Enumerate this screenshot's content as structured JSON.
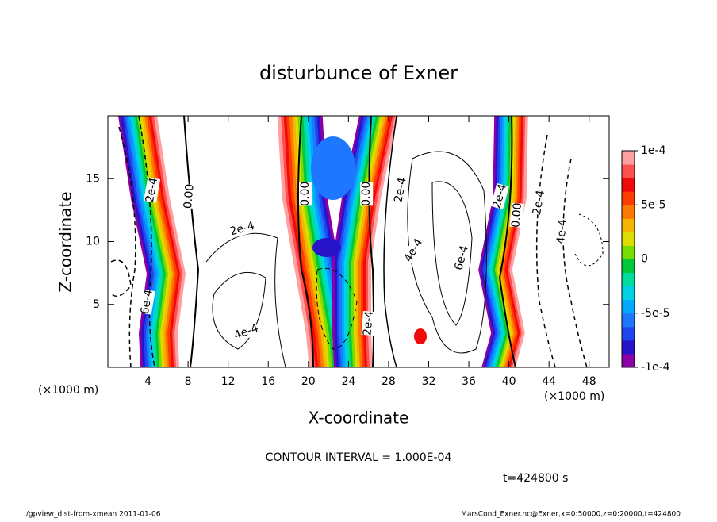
{
  "chart_data": {
    "type": "contour",
    "title": "disturbunce of Exner",
    "x_label": "X-coordinate",
    "y_label": "Z-coordinate",
    "x_unit": "(×1000 m)",
    "xlim": [
      0,
      50
    ],
    "ylim": [
      0,
      20
    ],
    "xticks": [
      4,
      8,
      12,
      16,
      20,
      24,
      28,
      32,
      36,
      40,
      44,
      48
    ],
    "yticks": [
      5,
      10,
      15
    ],
    "colorbar": {
      "lim": [
        -0.0001,
        0.0001
      ],
      "colors": [
        "#8c00a8",
        "#2814c8",
        "#1e46f0",
        "#1e78ff",
        "#00a8ff",
        "#00d2e6",
        "#00dca0",
        "#00c83c",
        "#78dc00",
        "#dcdc00",
        "#f5b400",
        "#ff7800",
        "#ff3c00",
        "#f00a0a",
        "#ff5050",
        "#ffa0a0"
      ],
      "ticks": [
        {
          "value": 0.0001,
          "label": "1e-4"
        },
        {
          "value": 5e-05,
          "label": "5e-5"
        },
        0,
        {
          "value": -5e-05,
          "label": "-5e-5"
        },
        {
          "value": -0.0001,
          "label": "-1e-4"
        }
      ]
    },
    "annotations": [
      {
        "text": "2e-4",
        "x": 4.4,
        "y": 14.1
      },
      {
        "text": "0.00",
        "x": 8.1,
        "y": 13.6
      },
      {
        "text": "6e-4",
        "x": 3.9,
        "y": 5.2
      },
      {
        "text": "2e-4",
        "x": 13.4,
        "y": 11.0
      },
      {
        "text": "4e-4",
        "x": 13.8,
        "y": 2.8
      },
      {
        "text": "0.00",
        "x": 19.7,
        "y": 13.8
      },
      {
        "text": "0.00",
        "x": 25.8,
        "y": 13.8
      },
      {
        "text": "2e-4",
        "x": 26.0,
        "y": 3.5
      },
      {
        "text": "2e-4",
        "x": 29.2,
        "y": 14.1
      },
      {
        "text": "4e-4",
        "x": 30.5,
        "y": 9.3
      },
      {
        "text": "6e-4",
        "x": 35.3,
        "y": 8.7
      },
      {
        "text": "2e-4",
        "x": 39.1,
        "y": 13.6
      },
      {
        "text": "0.00",
        "x": 40.8,
        "y": 12.1
      },
      {
        "text": "2e-4",
        "x": 43.0,
        "y": 13.1
      },
      {
        "text": "4e-4",
        "x": 45.3,
        "y": 10.8
      }
    ],
    "contour_interval": "CONTOUR INTERVAL = 1.000E-04",
    "time": "t=424800 s",
    "footer_left": "./gpview_dist-from-xmean  2011-01-06",
    "footer_right": "MarsCond_Exner.nc@Exner,x=0:50000,z=0:20000,t=424800"
  }
}
